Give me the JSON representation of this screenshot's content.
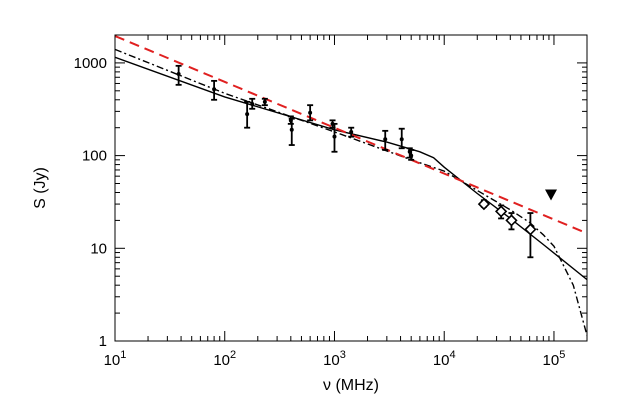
{
  "chart_data": {
    "type": "scatter",
    "xlabel": "ν (MHz)",
    "ylabel": "S (Jy)",
    "xscale": "log",
    "yscale": "log",
    "xlim": [
      10,
      200000
    ],
    "ylim": [
      1,
      2000
    ],
    "x_ticks": [
      {
        "value": 10,
        "base": "10",
        "exp": "1"
      },
      {
        "value": 100,
        "base": "10",
        "exp": "2"
      },
      {
        "value": 1000,
        "base": "10",
        "exp": "3"
      },
      {
        "value": 10000,
        "base": "10",
        "exp": "4"
      },
      {
        "value": 100000,
        "base": "10",
        "exp": "5"
      }
    ],
    "y_ticks": [
      {
        "value": 1,
        "label": "1"
      },
      {
        "value": 10,
        "label": "10"
      },
      {
        "value": 100,
        "label": "100"
      },
      {
        "value": 1000,
        "label": "1000"
      }
    ],
    "points": [
      {
        "x": 38,
        "y": 760,
        "lo": 580,
        "hi": 930
      },
      {
        "x": 80,
        "y": 520,
        "lo": 400,
        "hi": 640
      },
      {
        "x": 160,
        "y": 280,
        "lo": 200,
        "hi": 380
      },
      {
        "x": 178,
        "y": 360,
        "lo": 320,
        "hi": 410
      },
      {
        "x": 232,
        "y": 380,
        "lo": 350,
        "hi": 410
      },
      {
        "x": 400,
        "y": 240,
        "lo": 220,
        "hi": 265
      },
      {
        "x": 408,
        "y": 190,
        "lo": 130,
        "hi": 250
      },
      {
        "x": 600,
        "y": 290,
        "lo": 240,
        "hi": 350
      },
      {
        "x": 960,
        "y": 220,
        "lo": 200,
        "hi": 240
      },
      {
        "x": 1000,
        "y": 160,
        "lo": 110,
        "hi": 220
      },
      {
        "x": 1420,
        "y": 180,
        "lo": 160,
        "hi": 200
      },
      {
        "x": 2900,
        "y": 150,
        "lo": 115,
        "hi": 185
      },
      {
        "x": 4100,
        "y": 150,
        "lo": 120,
        "hi": 195
      },
      {
        "x": 4850,
        "y": 110,
        "lo": 95,
        "hi": 120
      },
      {
        "x": 5000,
        "y": 100,
        "lo": 90,
        "hi": 115
      }
    ],
    "diamonds": [
      {
        "x": 23000,
        "y": 30,
        "lo": 28,
        "hi": 33
      },
      {
        "x": 33000,
        "y": 25,
        "lo": 21,
        "hi": 29
      },
      {
        "x": 41000,
        "y": 20,
        "lo": 16,
        "hi": 24
      },
      {
        "x": 61000,
        "y": 16,
        "lo": 8,
        "hi": 24
      }
    ],
    "upper_limit": {
      "x": 94000,
      "y": 38
    },
    "series": [
      {
        "style": "solid",
        "color": "#000000",
        "points": [
          [
            10,
            1150
          ],
          [
            100,
            430
          ],
          [
            1000,
            190
          ],
          [
            3000,
            140
          ],
          [
            6000,
            110
          ],
          [
            8000,
            95
          ],
          [
            10000,
            75
          ],
          [
            20000,
            39
          ],
          [
            40000,
            21
          ],
          [
            80000,
            11
          ],
          [
            200000,
            4.6
          ]
        ]
      },
      {
        "style": "dash-dot",
        "color": "#000000",
        "points": [
          [
            10,
            1400
          ],
          [
            100,
            470
          ],
          [
            1000,
            180
          ],
          [
            5000,
            90
          ],
          [
            10000,
            68
          ],
          [
            20000,
            42
          ],
          [
            40000,
            26
          ],
          [
            60000,
            19
          ],
          [
            80000,
            14
          ],
          [
            100000,
            10.5
          ],
          [
            150000,
            4
          ],
          [
            200000,
            1.15
          ]
        ]
      },
      {
        "style": "dashed",
        "color": "#e02020",
        "points": [
          [
            10,
            1950
          ],
          [
            200000,
            14.5
          ]
        ]
      }
    ]
  }
}
